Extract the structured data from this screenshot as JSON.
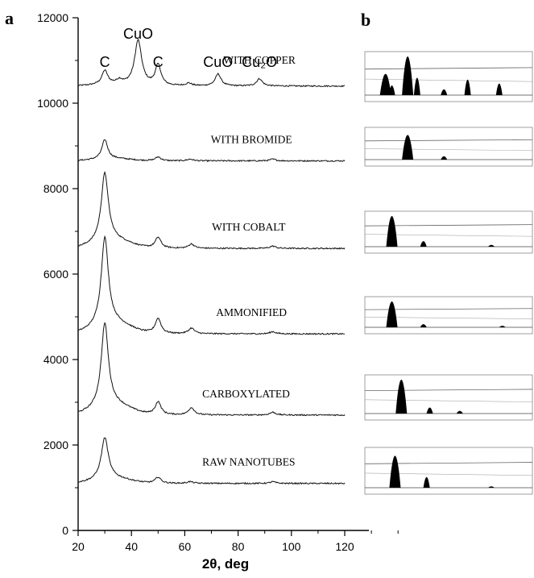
{
  "figure": {
    "panel_a_label": "a",
    "panel_b_label": "b"
  },
  "chart_data": {
    "type": "line",
    "xlabel": "2θ, deg",
    "ylabel": "",
    "xlim": [
      20,
      120
    ],
    "ylim": [
      0,
      12000
    ],
    "x_ticks": [
      "20",
      "40",
      "60",
      "80",
      "100",
      "120"
    ],
    "y_ticks": [
      "0",
      "2000",
      "4000",
      "6000",
      "8000",
      "10000",
      "12000"
    ],
    "peak_labels": [
      {
        "text": "C",
        "x": 30
      },
      {
        "text": "CuO",
        "x": 42.5
      },
      {
        "text": "C",
        "x": 50
      },
      {
        "text": "CuO",
        "x": 72.5
      },
      {
        "text": "Cu₂O",
        "x": 88
      }
    ],
    "series": [
      {
        "name": "WITH COPPER",
        "baseline": 10400,
        "peaks": [
          [
            30,
            320
          ],
          [
            35.5,
            90
          ],
          [
            42.5,
            1050
          ],
          [
            50,
            480
          ],
          [
            61.5,
            60
          ],
          [
            72.5,
            280
          ],
          [
            88,
            170
          ]
        ],
        "label_x": 88
      },
      {
        "name": "WITH BROMIDE",
        "baseline": 8650,
        "peaks": [
          [
            30,
            450
          ],
          [
            50,
            90
          ],
          [
            62,
            40
          ],
          [
            93,
            40
          ]
        ],
        "label_x": 85
      },
      {
        "name": "WITH COBALT",
        "baseline": 6600,
        "peaks": [
          [
            30,
            1600
          ],
          [
            50,
            250
          ],
          [
            62.5,
            100
          ],
          [
            93,
            55
          ]
        ],
        "label_x": 84
      },
      {
        "name": "AMMONIFIED",
        "baseline": 4600,
        "peaks": [
          [
            30,
            2050
          ],
          [
            50,
            350
          ],
          [
            62.5,
            130
          ],
          [
            93,
            50
          ]
        ],
        "label_x": 85
      },
      {
        "name": "CARBOXYLATED",
        "baseline": 2700,
        "peaks": [
          [
            30,
            1950
          ],
          [
            50,
            300
          ],
          [
            62.5,
            170
          ],
          [
            93,
            65
          ]
        ],
        "label_x": 83
      },
      {
        "name": "RAW NANOTUBES",
        "baseline": 1100,
        "peaks": [
          [
            30,
            970
          ],
          [
            50,
            140
          ],
          [
            62,
            40
          ],
          [
            93,
            40
          ]
        ],
        "label_x": 84
      }
    ]
  },
  "panel_b": {
    "thumbnails": [
      {
        "pattern": "copper"
      },
      {
        "pattern": "bromide"
      },
      {
        "pattern": "cobalt"
      },
      {
        "pattern": "ammonified"
      },
      {
        "pattern": "carboxylated"
      },
      {
        "pattern": "raw"
      }
    ]
  }
}
